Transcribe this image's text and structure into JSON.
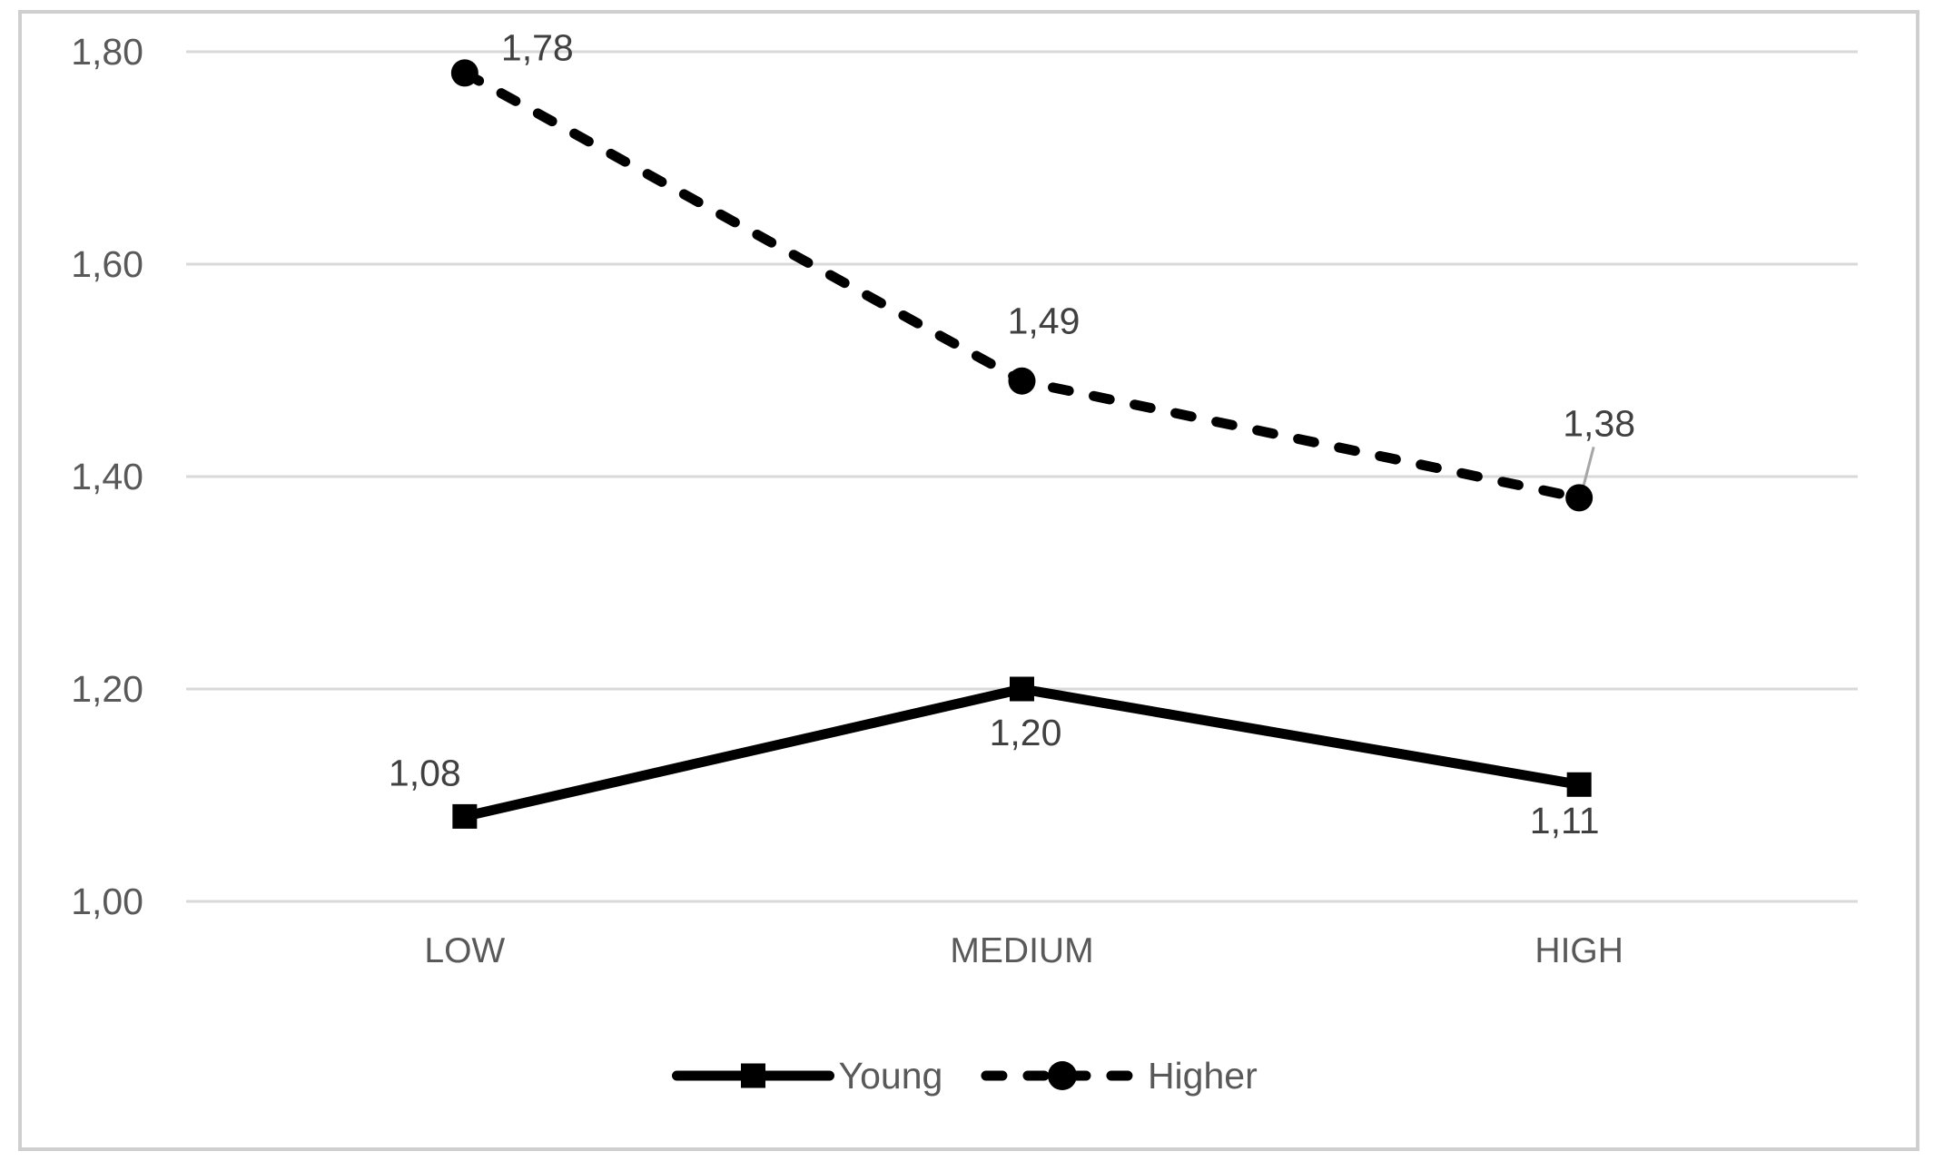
{
  "chart_data": {
    "type": "line",
    "title": "",
    "xlabel": "",
    "ylabel": "",
    "categories": [
      "LOW",
      "MEDIUM",
      "HIGH"
    ],
    "y_axis": {
      "min": 1.0,
      "max": 1.8,
      "ticks": [
        {
          "value": 1.8,
          "label": "1,80"
        },
        {
          "value": 1.6,
          "label": "1,60"
        },
        {
          "value": 1.4,
          "label": "1,40"
        },
        {
          "value": 1.2,
          "label": "1,20"
        },
        {
          "value": 1.0,
          "label": "1,00"
        }
      ],
      "grid": true
    },
    "series": [
      {
        "name": "Young",
        "line_style": "solid",
        "marker": "square",
        "color": "#000000",
        "points": [
          {
            "category": "LOW",
            "value": 1.08,
            "label": "1,08",
            "label_offset": {
              "dx": -44,
              "dy": -48
            },
            "leader_line": false
          },
          {
            "category": "MEDIUM",
            "value": 1.2,
            "label": "1,20",
            "label_offset": {
              "dx": 4,
              "dy": 48
            },
            "leader_line": false
          },
          {
            "category": "HIGH",
            "value": 1.11,
            "label": "1,11",
            "label_offset": {
              "dx": -16,
              "dy": 40
            },
            "leader_line": false
          }
        ]
      },
      {
        "name": "Higher",
        "line_style": "dashed",
        "marker": "circle",
        "color": "#000000",
        "points": [
          {
            "category": "LOW",
            "value": 1.78,
            "label": "1,78",
            "label_offset": {
              "dx": 80,
              "dy": -28
            },
            "leader_line": false
          },
          {
            "category": "MEDIUM",
            "value": 1.49,
            "label": "1,49",
            "label_offset": {
              "dx": 24,
              "dy": -66
            },
            "leader_line": false
          },
          {
            "category": "HIGH",
            "value": 1.38,
            "label": "1,38",
            "label_offset": {
              "dx": 22,
              "dy": -82
            },
            "leader_line": true
          }
        ]
      }
    ],
    "legend": {
      "position": "bottom",
      "items": [
        {
          "label": "Young",
          "line_style": "solid",
          "marker": "square"
        },
        {
          "label": "Higher",
          "line_style": "dashed",
          "marker": "circle"
        }
      ]
    },
    "colors": {
      "line": "#000000",
      "grid": "#d9d9d9",
      "frame": "#cfcfcf",
      "axis_text": "#595959",
      "data_label_text": "#404040",
      "legend_text": "#595959",
      "leader_line": "#a6a6a6",
      "background": "#ffffff"
    }
  }
}
